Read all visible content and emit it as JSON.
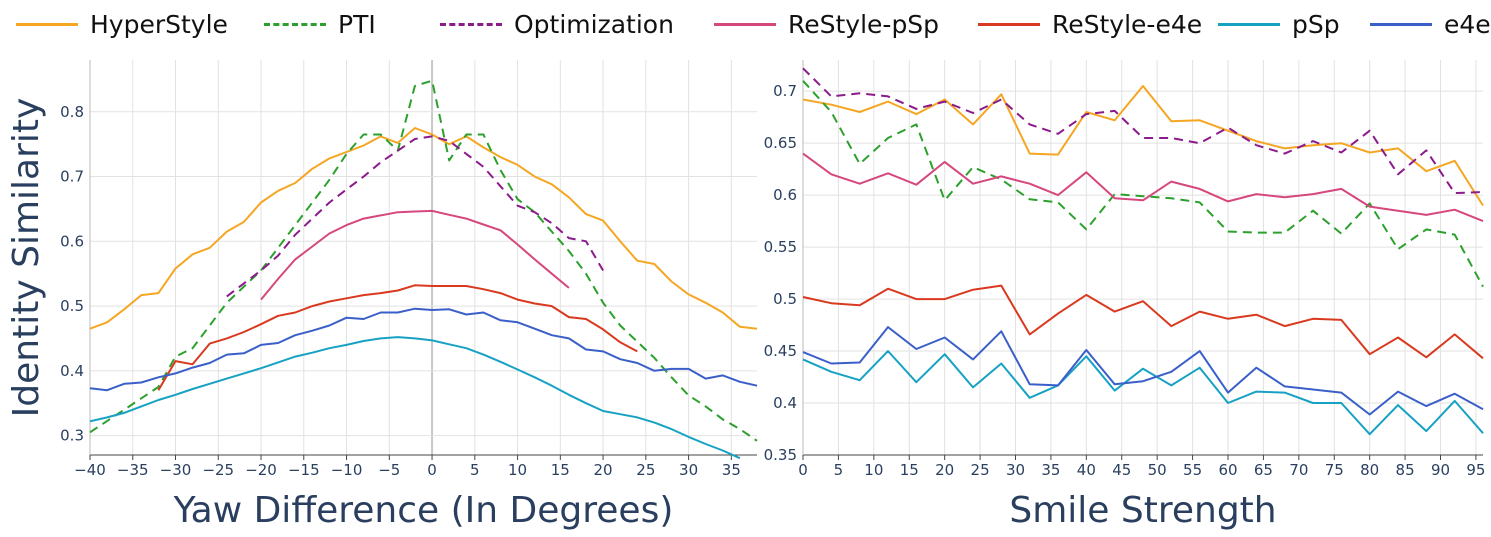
{
  "legend": [
    {
      "name": "HyperStyle",
      "color": "#f5a623",
      "dash": "solid"
    },
    {
      "name": "PTI",
      "color": "#2ca02c",
      "dash": "dash"
    },
    {
      "name": "Optimization",
      "color": "#8b1a8b",
      "dash": "dash"
    },
    {
      "name": "ReStyle-pSp",
      "color": "#d6477d",
      "dash": "solid"
    },
    {
      "name": "ReStyle-e4e",
      "color": "#d93a1f",
      "dash": "solid"
    },
    {
      "name": "pSp",
      "color": "#17a2c4",
      "dash": "solid"
    },
    {
      "name": "e4e",
      "color": "#3a5fc8",
      "dash": "solid"
    }
  ],
  "chart_data": [
    {
      "type": "line",
      "xlabel": "Yaw Difference (In Degrees)",
      "ylabel": "Identity Similarity",
      "xlim": [
        -40,
        38
      ],
      "ylim": [
        0.27,
        0.88
      ],
      "xticks": [
        -40,
        -35,
        -30,
        -25,
        -20,
        -15,
        -10,
        -5,
        0,
        5,
        10,
        15,
        20,
        25,
        30,
        35
      ],
      "yticks": [
        0.3,
        0.4,
        0.5,
        0.6,
        0.7,
        0.8
      ],
      "series": [
        {
          "name": "HyperStyle",
          "x": [
            -40,
            -38,
            -36,
            -34,
            -32,
            -30,
            -28,
            -26,
            -24,
            -22,
            -20,
            -18,
            -16,
            -14,
            -12,
            -10,
            -8,
            -6,
            -4,
            -2,
            0,
            2,
            4,
            6,
            8,
            10,
            12,
            14,
            16,
            18,
            20,
            22,
            24,
            26,
            28,
            30,
            32,
            34,
            36,
            38
          ],
          "y": [
            0.465,
            0.475,
            0.495,
            0.517,
            0.52,
            0.558,
            0.58,
            0.59,
            0.615,
            0.63,
            0.66,
            0.678,
            0.69,
            0.712,
            0.728,
            0.738,
            0.748,
            0.762,
            0.752,
            0.775,
            0.765,
            0.75,
            0.762,
            0.745,
            0.73,
            0.718,
            0.7,
            0.688,
            0.668,
            0.642,
            0.632,
            0.6,
            0.57,
            0.565,
            0.538,
            0.518,
            0.505,
            0.49,
            0.468,
            0.465
          ]
        },
        {
          "name": "PTI",
          "x": [
            -40,
            -36,
            -32,
            -30,
            -28,
            -26,
            -24,
            -22,
            -20,
            -18,
            -16,
            -14,
            -12,
            -10,
            -8,
            -6,
            -4,
            -2,
            0,
            2,
            4,
            6,
            8,
            10,
            12,
            14,
            16,
            18,
            20,
            22,
            24,
            26,
            28,
            30,
            32,
            34,
            36,
            38
          ],
          "y": [
            0.305,
            0.34,
            0.375,
            0.422,
            0.435,
            0.47,
            0.505,
            0.53,
            0.555,
            0.59,
            0.625,
            0.66,
            0.695,
            0.735,
            0.765,
            0.765,
            0.74,
            0.84,
            0.848,
            0.725,
            0.765,
            0.765,
            0.71,
            0.665,
            0.645,
            0.615,
            0.585,
            0.55,
            0.505,
            0.47,
            0.445,
            0.42,
            0.39,
            0.362,
            0.345,
            0.325,
            0.31,
            0.292
          ]
        },
        {
          "name": "Optimization",
          "x": [
            -24,
            -22,
            -20,
            -18,
            -16,
            -14,
            -12,
            -10,
            -8,
            -6,
            -4,
            -2,
            0,
            2,
            4,
            6,
            8,
            10,
            12,
            14,
            16,
            18,
            20
          ],
          "y": [
            0.515,
            0.535,
            0.555,
            0.578,
            0.61,
            0.635,
            0.66,
            0.68,
            0.7,
            0.722,
            0.74,
            0.758,
            0.762,
            0.755,
            0.735,
            0.715,
            0.685,
            0.655,
            0.645,
            0.628,
            0.605,
            0.6,
            0.555
          ]
        },
        {
          "name": "ReStyle-pSp",
          "x": [
            -20,
            -18,
            -16,
            -14,
            -12,
            -10,
            -8,
            -6,
            -4,
            -2,
            0,
            2,
            4,
            6,
            8,
            10,
            12,
            14,
            16
          ],
          "y": [
            0.51,
            0.542,
            0.572,
            0.592,
            0.612,
            0.625,
            0.635,
            0.64,
            0.645,
            0.646,
            0.647,
            0.641,
            0.635,
            0.626,
            0.617,
            0.595,
            0.572,
            0.55,
            0.528
          ]
        },
        {
          "name": "ReStyle-e4e",
          "x": [
            -32,
            -30,
            -28,
            -26,
            -24,
            -22,
            -20,
            -18,
            -16,
            -14,
            -12,
            -10,
            -8,
            -6,
            -4,
            -2,
            0,
            2,
            4,
            6,
            8,
            10,
            12,
            14,
            16,
            18,
            20,
            22,
            24
          ],
          "y": [
            0.37,
            0.415,
            0.41,
            0.442,
            0.45,
            0.46,
            0.472,
            0.485,
            0.49,
            0.5,
            0.507,
            0.512,
            0.517,
            0.52,
            0.524,
            0.532,
            0.531,
            0.531,
            0.531,
            0.526,
            0.52,
            0.51,
            0.504,
            0.5,
            0.483,
            0.48,
            0.464,
            0.444,
            0.43
          ]
        },
        {
          "name": "pSp",
          "x": [
            -40,
            -38,
            -36,
            -34,
            -32,
            -30,
            -28,
            -26,
            -24,
            -22,
            -20,
            -18,
            -16,
            -14,
            -12,
            -10,
            -8,
            -6,
            -4,
            -2,
            0,
            2,
            4,
            6,
            8,
            10,
            12,
            14,
            16,
            18,
            20,
            22,
            24,
            26,
            28,
            30,
            32,
            34,
            36
          ],
          "y": [
            0.322,
            0.328,
            0.335,
            0.345,
            0.355,
            0.363,
            0.372,
            0.38,
            0.388,
            0.396,
            0.404,
            0.413,
            0.422,
            0.428,
            0.435,
            0.44,
            0.446,
            0.45,
            0.452,
            0.45,
            0.447,
            0.441,
            0.435,
            0.425,
            0.414,
            0.402,
            0.39,
            0.377,
            0.363,
            0.35,
            0.338,
            0.333,
            0.328,
            0.32,
            0.31,
            0.298,
            0.287,
            0.277,
            0.265
          ]
        },
        {
          "name": "e4e",
          "x": [
            -40,
            -38,
            -36,
            -34,
            -32,
            -30,
            -28,
            -26,
            -24,
            -22,
            -20,
            -18,
            -16,
            -14,
            -12,
            -10,
            -8,
            -6,
            -4,
            -2,
            0,
            2,
            4,
            6,
            8,
            10,
            12,
            14,
            16,
            18,
            20,
            22,
            24,
            26,
            28,
            30,
            32,
            34,
            36,
            38
          ],
          "y": [
            0.373,
            0.37,
            0.38,
            0.382,
            0.39,
            0.396,
            0.405,
            0.412,
            0.425,
            0.427,
            0.44,
            0.443,
            0.455,
            0.462,
            0.47,
            0.482,
            0.48,
            0.49,
            0.49,
            0.496,
            0.494,
            0.495,
            0.487,
            0.49,
            0.478,
            0.475,
            0.465,
            0.455,
            0.45,
            0.433,
            0.43,
            0.418,
            0.412,
            0.4,
            0.403,
            0.403,
            0.388,
            0.393,
            0.383,
            0.377
          ]
        }
      ]
    },
    {
      "type": "line",
      "xlabel": "Smile Strength",
      "ylabel": "",
      "xlim": [
        0,
        96
      ],
      "ylim": [
        0.35,
        0.73
      ],
      "xticks": [
        0,
        5,
        10,
        15,
        20,
        25,
        30,
        35,
        40,
        45,
        50,
        55,
        60,
        65,
        70,
        75,
        80,
        85,
        90,
        95
      ],
      "yticks": [
        0.35,
        0.4,
        0.45,
        0.5,
        0.55,
        0.6,
        0.65,
        0.7
      ],
      "series": [
        {
          "name": "HyperStyle",
          "x": [
            0,
            4,
            8,
            12,
            16,
            20,
            24,
            28,
            32,
            36,
            40,
            44,
            48,
            52,
            56,
            60,
            64,
            68,
            72,
            76,
            80,
            84,
            88,
            92,
            96
          ],
          "y": [
            0.692,
            0.687,
            0.68,
            0.69,
            0.678,
            0.692,
            0.668,
            0.697,
            0.64,
            0.639,
            0.68,
            0.672,
            0.705,
            0.671,
            0.672,
            0.662,
            0.652,
            0.645,
            0.648,
            0.65,
            0.641,
            0.645,
            0.623,
            0.633,
            0.59
          ]
        },
        {
          "name": "PTI",
          "x": [
            0,
            4,
            8,
            12,
            16,
            20,
            24,
            28,
            32,
            36,
            40,
            44,
            48,
            52,
            56,
            60,
            64,
            68,
            72,
            76,
            80,
            84,
            88,
            92,
            96
          ],
          "y": [
            0.71,
            0.68,
            0.63,
            0.655,
            0.668,
            0.595,
            0.627,
            0.615,
            0.596,
            0.593,
            0.567,
            0.601,
            0.599,
            0.597,
            0.593,
            0.565,
            0.564,
            0.564,
            0.585,
            0.563,
            0.592,
            0.548,
            0.567,
            0.562,
            0.512
          ]
        },
        {
          "name": "Optimization",
          "x": [
            0,
            4,
            8,
            12,
            16,
            20,
            24,
            28,
            32,
            36,
            40,
            44,
            48,
            52,
            56,
            60,
            64,
            68,
            72,
            76,
            80,
            84,
            88,
            92,
            96
          ],
          "y": [
            0.722,
            0.695,
            0.698,
            0.695,
            0.683,
            0.69,
            0.679,
            0.692,
            0.668,
            0.659,
            0.678,
            0.681,
            0.655,
            0.655,
            0.65,
            0.665,
            0.648,
            0.64,
            0.652,
            0.641,
            0.662,
            0.62,
            0.643,
            0.602,
            0.603
          ]
        },
        {
          "name": "ReStyle-pSp",
          "x": [
            0,
            4,
            8,
            12,
            16,
            20,
            24,
            28,
            32,
            36,
            40,
            44,
            48,
            52,
            56,
            60,
            64,
            68,
            72,
            76,
            80,
            84,
            88,
            92,
            96
          ],
          "y": [
            0.64,
            0.62,
            0.611,
            0.621,
            0.61,
            0.632,
            0.611,
            0.618,
            0.611,
            0.6,
            0.622,
            0.597,
            0.595,
            0.613,
            0.606,
            0.594,
            0.601,
            0.598,
            0.601,
            0.606,
            0.589,
            0.585,
            0.581,
            0.586,
            0.575
          ]
        },
        {
          "name": "ReStyle-e4e",
          "x": [
            0,
            4,
            8,
            12,
            16,
            20,
            24,
            28,
            32,
            36,
            40,
            44,
            48,
            52,
            56,
            60,
            64,
            68,
            72,
            76,
            80,
            84,
            88,
            92,
            96
          ],
          "y": [
            0.502,
            0.496,
            0.494,
            0.51,
            0.5,
            0.5,
            0.509,
            0.513,
            0.466,
            0.486,
            0.504,
            0.488,
            0.498,
            0.474,
            0.488,
            0.481,
            0.485,
            0.474,
            0.481,
            0.48,
            0.447,
            0.463,
            0.444,
            0.466,
            0.443
          ]
        },
        {
          "name": "pSp",
          "x": [
            0,
            4,
            8,
            12,
            16,
            20,
            24,
            28,
            32,
            36,
            40,
            44,
            48,
            52,
            56,
            60,
            64,
            68,
            72,
            76,
            80,
            84,
            88,
            92,
            96
          ],
          "y": [
            0.442,
            0.43,
            0.422,
            0.45,
            0.42,
            0.447,
            0.415,
            0.438,
            0.405,
            0.417,
            0.445,
            0.412,
            0.433,
            0.417,
            0.434,
            0.4,
            0.411,
            0.41,
            0.4,
            0.4,
            0.37,
            0.398,
            0.373,
            0.402,
            0.371
          ]
        },
        {
          "name": "e4e",
          "x": [
            0,
            4,
            8,
            12,
            16,
            20,
            24,
            28,
            32,
            36,
            40,
            44,
            48,
            52,
            56,
            60,
            64,
            68,
            72,
            76,
            80,
            84,
            88,
            92,
            96
          ],
          "y": [
            0.449,
            0.438,
            0.439,
            0.473,
            0.452,
            0.463,
            0.442,
            0.469,
            0.418,
            0.417,
            0.451,
            0.418,
            0.421,
            0.43,
            0.45,
            0.41,
            0.434,
            0.416,
            0.413,
            0.41,
            0.389,
            0.411,
            0.397,
            0.409,
            0.394
          ]
        }
      ]
    }
  ]
}
